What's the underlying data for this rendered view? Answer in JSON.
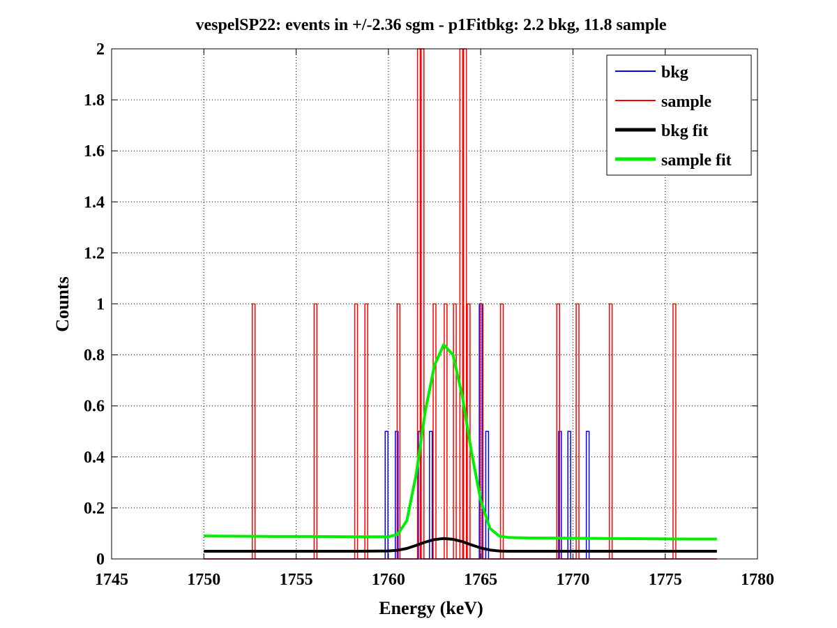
{
  "chart_data": {
    "type": "line",
    "title": "vespelSP22: events in +/-2.36 sgm - p1Fitbkg: 2.2 bkg, 11.8 sample",
    "xlabel": "Energy (keV)",
    "ylabel": "Counts",
    "xlim": [
      1745,
      1780
    ],
    "ylim": [
      0,
      2
    ],
    "xticks": [
      1745,
      1750,
      1755,
      1760,
      1765,
      1770,
      1775,
      1780
    ],
    "yticks": [
      0,
      0.2,
      0.4,
      0.6,
      0.8,
      1,
      1.2,
      1.4,
      1.6,
      1.8,
      2
    ],
    "xtick_labels": [
      "1745",
      "1750",
      "1755",
      "1760",
      "1765",
      "1770",
      "1775",
      "1780"
    ],
    "ytick_labels": [
      "0",
      "0.2",
      "0.4",
      "0.6",
      "0.8",
      "1",
      "1.2",
      "1.4",
      "1.6",
      "1.8",
      "2"
    ],
    "grid": true,
    "legend_position": "top-right",
    "bin_width": 0.15,
    "series": [
      {
        "name": "bkg",
        "style": "histogram",
        "color": "#0000ff",
        "x_range": [
          1750,
          1777.8
        ],
        "nonzero_bins": [
          {
            "x": 1759.9,
            "y": 0.5
          },
          {
            "x": 1760.45,
            "y": 0.5
          },
          {
            "x": 1761.7,
            "y": 0.5
          },
          {
            "x": 1762.3,
            "y": 0.5
          },
          {
            "x": 1765.0,
            "y": 1
          },
          {
            "x": 1765.35,
            "y": 0.5
          },
          {
            "x": 1769.3,
            "y": 0.5
          },
          {
            "x": 1769.8,
            "y": 0.5
          },
          {
            "x": 1770.8,
            "y": 0.5
          }
        ]
      },
      {
        "name": "sample",
        "style": "histogram",
        "color": "#ff0000",
        "x_range": [
          1750,
          1777.8
        ],
        "nonzero_bins": [
          {
            "x": 1752.7,
            "y": 1
          },
          {
            "x": 1756.05,
            "y": 1
          },
          {
            "x": 1758.25,
            "y": 1
          },
          {
            "x": 1758.8,
            "y": 1
          },
          {
            "x": 1760.55,
            "y": 1
          },
          {
            "x": 1761.65,
            "y": 2
          },
          {
            "x": 1761.85,
            "y": 2
          },
          {
            "x": 1762.5,
            "y": 1
          },
          {
            "x": 1763.1,
            "y": 1
          },
          {
            "x": 1763.6,
            "y": 1
          },
          {
            "x": 1763.95,
            "y": 2
          },
          {
            "x": 1764.15,
            "y": 2
          },
          {
            "x": 1764.35,
            "y": 1
          },
          {
            "x": 1765.05,
            "y": 1
          },
          {
            "x": 1766.15,
            "y": 1
          },
          {
            "x": 1769.2,
            "y": 1
          },
          {
            "x": 1770.25,
            "y": 1
          },
          {
            "x": 1772.05,
            "y": 1
          },
          {
            "x": 1775.5,
            "y": 1
          }
        ]
      },
      {
        "name": "bkg fit",
        "style": "curve",
        "color": "#000000",
        "x": [
          1750,
          1752,
          1754,
          1756,
          1758,
          1760,
          1760.5,
          1761,
          1761.5,
          1762,
          1762.5,
          1763,
          1763.5,
          1764,
          1764.5,
          1765,
          1765.5,
          1766,
          1766.5,
          1767,
          1768,
          1770,
          1772,
          1774,
          1776,
          1777.8
        ],
        "y": [
          0.03,
          0.03,
          0.03,
          0.03,
          0.03,
          0.031,
          0.034,
          0.041,
          0.053,
          0.066,
          0.076,
          0.08,
          0.077,
          0.068,
          0.055,
          0.043,
          0.035,
          0.031,
          0.03,
          0.03,
          0.03,
          0.03,
          0.03,
          0.03,
          0.03,
          0.03
        ]
      },
      {
        "name": "sample fit",
        "style": "curve",
        "color": "#00ee00",
        "x": [
          1750,
          1752,
          1754,
          1756,
          1758,
          1760,
          1760.5,
          1761,
          1761.5,
          1762,
          1762.5,
          1763,
          1763.5,
          1764,
          1764.5,
          1765,
          1765.5,
          1766,
          1766.5,
          1767,
          1768,
          1770,
          1772,
          1774,
          1776,
          1777.8
        ],
        "y": [
          0.09,
          0.089,
          0.088,
          0.088,
          0.087,
          0.087,
          0.096,
          0.15,
          0.33,
          0.58,
          0.76,
          0.84,
          0.8,
          0.64,
          0.42,
          0.23,
          0.12,
          0.09,
          0.084,
          0.083,
          0.082,
          0.081,
          0.08,
          0.079,
          0.078,
          0.078
        ]
      }
    ]
  }
}
